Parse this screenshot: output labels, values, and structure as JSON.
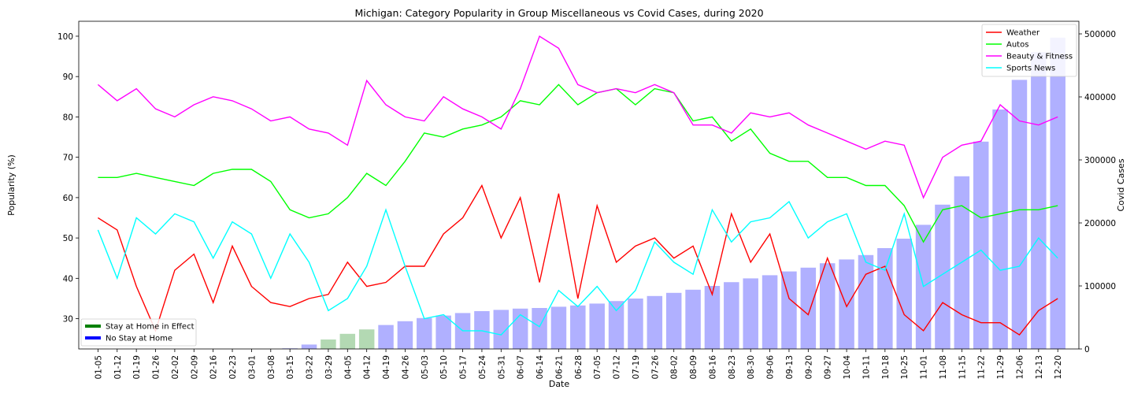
{
  "chart_data": {
    "type": "bar+line",
    "title": "Michigan: Category Popularity in Group Miscellaneous vs Covid Cases, during 2020",
    "xlabel": "Date",
    "ylabel": "Popularity (%)",
    "y2label": "Covid Cases",
    "ylim": [
      22.5,
      103.7
    ],
    "y2lim": [
      0,
      520000
    ],
    "yticks": [
      30,
      40,
      50,
      60,
      70,
      80,
      90,
      100
    ],
    "y2ticks": [
      0,
      100000,
      200000,
      300000,
      400000,
      500000
    ],
    "categories": [
      "01-05",
      "01-12",
      "01-19",
      "01-26",
      "02-02",
      "02-09",
      "02-16",
      "02-23",
      "03-01",
      "03-08",
      "03-15",
      "03-22",
      "03-29",
      "04-05",
      "04-12",
      "04-19",
      "04-26",
      "05-03",
      "05-10",
      "05-17",
      "05-24",
      "05-31",
      "06-07",
      "06-14",
      "06-21",
      "06-28",
      "07-05",
      "07-12",
      "07-19",
      "07-26",
      "08-02",
      "08-09",
      "08-16",
      "08-23",
      "08-30",
      "09-06",
      "09-13",
      "09-20",
      "09-27",
      "10-04",
      "10-11",
      "10-18",
      "10-25",
      "11-01",
      "11-08",
      "11-15",
      "11-22",
      "11-29",
      "12-06",
      "12-13",
      "12-20"
    ],
    "series": [
      {
        "name": "Weather",
        "color": "#ff0000",
        "values": [
          55,
          52,
          38,
          27,
          42,
          46,
          34,
          48,
          38,
          34,
          33,
          35,
          36,
          44,
          38,
          39,
          43,
          43,
          51,
          55,
          63,
          50,
          60,
          39,
          61,
          35,
          58,
          44,
          48,
          50,
          45,
          48,
          36,
          56,
          44,
          51,
          35,
          31,
          45,
          33,
          41,
          43,
          31,
          27,
          34,
          31,
          29,
          29,
          26,
          32,
          35
        ]
      },
      {
        "name": "Autos",
        "color": "#00ff00",
        "values": [
          65,
          65,
          66,
          65,
          64,
          63,
          66,
          67,
          67,
          64,
          57,
          55,
          56,
          60,
          66,
          63,
          69,
          76,
          75,
          77,
          78,
          80,
          84,
          83,
          88,
          83,
          86,
          87,
          83,
          87,
          86,
          79,
          80,
          74,
          77,
          71,
          69,
          69,
          65,
          65,
          63,
          63,
          58,
          49,
          57,
          58,
          55,
          56,
          57,
          57,
          58
        ]
      },
      {
        "name": "Beauty & Fitness",
        "color": "#ff00ff",
        "values": [
          88,
          84,
          87,
          82,
          80,
          83,
          85,
          84,
          82,
          79,
          80,
          77,
          76,
          73,
          89,
          83,
          80,
          79,
          85,
          82,
          80,
          77,
          87,
          100,
          97,
          88,
          86,
          87,
          86,
          88,
          86,
          78,
          78,
          76,
          81,
          80,
          81,
          78,
          76,
          74,
          72,
          74,
          73,
          60,
          70,
          73,
          74,
          83,
          79,
          78,
          80
        ]
      },
      {
        "name": "Sports News",
        "color": "#00ffff",
        "values": [
          52,
          40,
          55,
          51,
          56,
          54,
          45,
          54,
          51,
          40,
          51,
          44,
          32,
          35,
          43,
          57,
          43,
          30,
          31,
          27,
          27,
          26,
          31,
          28,
          37,
          33,
          38,
          32,
          37,
          49,
          44,
          41,
          57,
          49,
          54,
          55,
          59,
          50,
          54,
          56,
          44,
          42,
          56,
          38,
          41,
          44,
          47,
          42,
          43,
          50,
          45
        ]
      }
    ],
    "bars": {
      "name": "Covid Cases",
      "color": "#b0b0ff",
      "values": [
        0,
        0,
        0,
        0,
        0,
        0,
        0,
        0,
        0,
        0,
        1000,
        7000,
        15000,
        24000,
        31000,
        38000,
        44000,
        49000,
        53000,
        57000,
        60000,
        62000,
        64000,
        65000,
        67000,
        69000,
        72000,
        76000,
        80000,
        84000,
        89000,
        94000,
        100000,
        106000,
        112000,
        117000,
        123000,
        129000,
        136000,
        142000,
        149000,
        160000,
        175000,
        197000,
        229000,
        274000,
        329000,
        380000,
        427000,
        471000,
        494000
      ]
    },
    "stay_home_weeks": [
      "03-29",
      "04-05",
      "04-12"
    ],
    "stay_home_color": "#b3d9b3",
    "legend_lines": {
      "position": "upper right",
      "entries": [
        "Weather",
        "Autos",
        "Beauty & Fitness",
        "Sports News"
      ]
    },
    "legend_bars": {
      "position": "lower left",
      "entries": [
        {
          "label": "Stay at Home in Effect",
          "color": "#008000"
        },
        {
          "label": "No Stay at Home",
          "color": "#0000ff"
        }
      ]
    }
  }
}
